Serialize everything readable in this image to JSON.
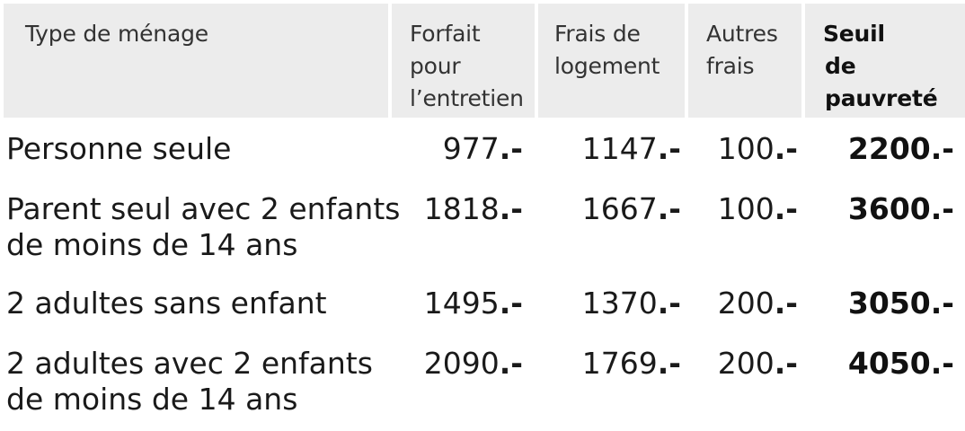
{
  "chart_data": {
    "type": "table",
    "columns": [
      "Type de ménage",
      "Forfait pour l'entretien",
      "Frais de logement",
      "Autres frais",
      "Seuil de pauvreté"
    ],
    "header_lines": [
      [
        "Type de ménage"
      ],
      [
        "Forfait",
        "pour",
        "l’entretien"
      ],
      [
        "Frais de",
        "logement"
      ],
      [
        "Autres",
        "frais"
      ],
      [
        "Seuil",
        "de pauvreté"
      ]
    ],
    "rows": [
      {
        "label_lines": [
          "Personne seule"
        ],
        "values": [
          977,
          1147,
          100,
          2200
        ],
        "display": [
          "977",
          "1147",
          "100",
          "2200"
        ]
      },
      {
        "label_lines": [
          "Parent seul avec 2 enfants",
          "de moins de 14 ans"
        ],
        "values": [
          1818,
          1667,
          100,
          3600
        ],
        "display": [
          "1818",
          "1667",
          "100",
          "3600"
        ]
      },
      {
        "label_lines": [
          "2 adultes sans enfant"
        ],
        "values": [
          1495,
          1370,
          200,
          3050
        ],
        "display": [
          "1495",
          "1370",
          "200",
          "3050"
        ]
      },
      {
        "label_lines": [
          "2 adultes avec 2 enfants",
          "de moins de 14 ans"
        ],
        "values": [
          2090,
          1769,
          200,
          4050
        ],
        "display": [
          "2090",
          "1769",
          "200",
          "4050"
        ]
      }
    ],
    "value_suffix": ".-",
    "bold_column": 4
  },
  "colors": {
    "header_background": "#ececec",
    "text": "#1a1a1a"
  }
}
